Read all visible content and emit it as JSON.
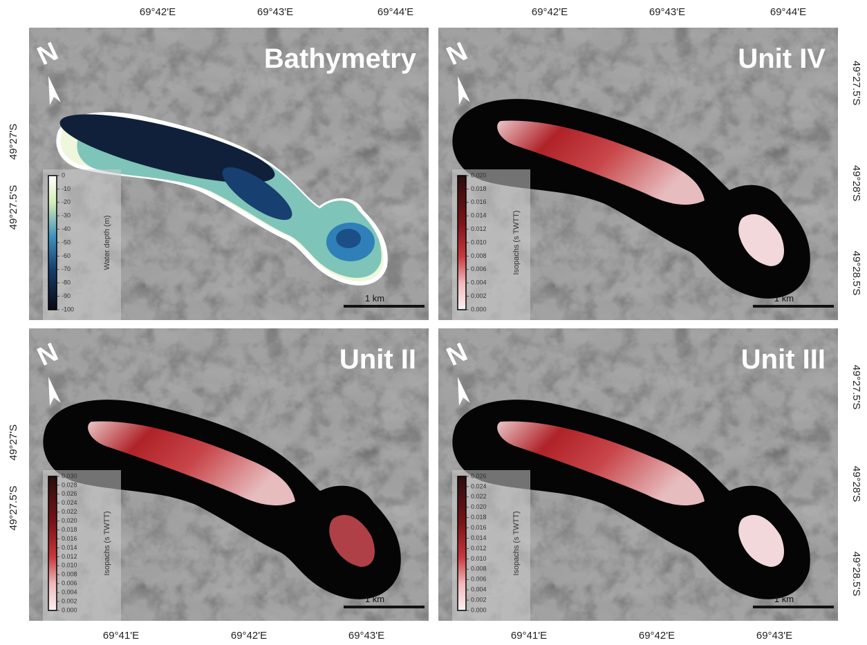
{
  "longitude_top": [
    "69°42'E",
    "69°43'E",
    "69°44'E"
  ],
  "longitude_bottom": [
    "69°41'E",
    "69°42'E",
    "69°43'E"
  ],
  "latitude_left": [
    "49°27'S",
    "49°27.5'S"
  ],
  "latitude_right": [
    "49°27.5'S",
    "49°28'S",
    "49°28.5'S"
  ],
  "panels": [
    {
      "title": "Bathymetry",
      "north": "N",
      "scale": "1 km",
      "legend": {
        "label": "Water depth (m)",
        "ticks": [
          "0",
          "-10",
          "-20",
          "-30",
          "-40",
          "-50",
          "-60",
          "-70",
          "-80",
          "-90",
          "-100"
        ]
      }
    },
    {
      "title": "Unit IV",
      "north": "N",
      "scale": "1 km",
      "legend": {
        "label": "Isopachs (s TWTT)",
        "ticks": [
          "0.020",
          "0.018",
          "0.016",
          "0.014",
          "0.012",
          "0.010",
          "0.008",
          "0.006",
          "0.004",
          "0.002",
          "0.000"
        ]
      }
    },
    {
      "title": "Unit II",
      "north": "N",
      "scale": "1 km",
      "legend": {
        "label": "Isopachs (s TWTT)",
        "ticks": [
          "0.030",
          "0.028",
          "0.026",
          "0.024",
          "0.022",
          "0.020",
          "0.018",
          "0.016",
          "0.014",
          "0.012",
          "0.010",
          "0.008",
          "0.006",
          "0.004",
          "0.002",
          "0.000"
        ]
      }
    },
    {
      "title": "Unit III",
      "north": "N",
      "scale": "1 km",
      "legend": {
        "label": "Isopachs (s TWTT)",
        "ticks": [
          "0.026",
          "0.024",
          "0.022",
          "0.020",
          "0.018",
          "0.016",
          "0.014",
          "0.012",
          "0.010",
          "0.008",
          "0.006",
          "0.004",
          "0.002",
          "0.000"
        ]
      }
    }
  ]
}
